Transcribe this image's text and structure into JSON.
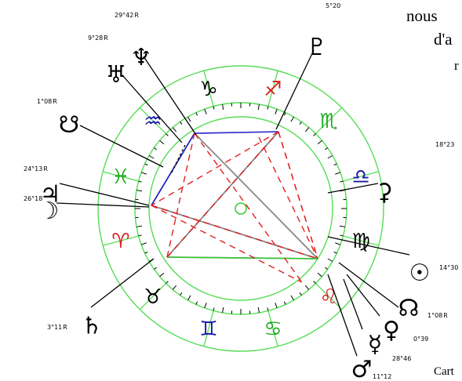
{
  "text_fragments": {
    "top_right_1": "nous",
    "top_right_2": "d'a",
    "top_right_3": "r",
    "bottom_right": "Cart"
  },
  "colors": {
    "ring": "#55dd55",
    "fire": "#dd2222",
    "earth": "#000000",
    "air": "#1a1aa8",
    "water": "#22aa22",
    "blue_line": "#2222cc",
    "red_dashed": "#e02020",
    "gray_line": "#888888",
    "green_line": "#33cc33"
  },
  "signs": [
    {
      "name": "aquarius",
      "glyph": "♒",
      "color": "#1a1aa8"
    },
    {
      "name": "capricorn",
      "glyph": "♑",
      "color": "#000000"
    },
    {
      "name": "sagittarius",
      "glyph": "♐",
      "color": "#dd2222"
    },
    {
      "name": "scorpio",
      "glyph": "♏",
      "color": "#22aa22"
    },
    {
      "name": "libra",
      "glyph": "♎",
      "color": "#1a1aa8"
    },
    {
      "name": "virgo",
      "glyph": "♍",
      "color": "#000000"
    },
    {
      "name": "leo",
      "glyph": "♌",
      "color": "#dd2222"
    },
    {
      "name": "cancer",
      "glyph": "♋",
      "color": "#22aa22"
    },
    {
      "name": "gemini",
      "glyph": "♊",
      "color": "#1a1aa8"
    },
    {
      "name": "taurus",
      "glyph": "♉",
      "color": "#000000"
    },
    {
      "name": "aries",
      "glyph": "♈",
      "color": "#dd2222"
    },
    {
      "name": "pisces",
      "glyph": "♓",
      "color": "#22aa22"
    }
  ],
  "planets": [
    {
      "name": "neptune",
      "glyph": "♆",
      "degree": "29°42",
      "retro": "R"
    },
    {
      "name": "uranus",
      "glyph": "♅",
      "degree": "9°28",
      "retro": "R"
    },
    {
      "name": "pluto",
      "glyph": "♇",
      "degree": "5°20",
      "retro": ""
    },
    {
      "name": "north-node",
      "glyph": "☋",
      "degree": "1°08",
      "retro": "R"
    },
    {
      "name": "ceres",
      "glyph": "⚳",
      "degree": "18°23",
      "retro": ""
    },
    {
      "name": "jupiter",
      "glyph": "♃",
      "degree": "24°13",
      "retro": "R"
    },
    {
      "name": "moon",
      "glyph": "☽",
      "degree": "26°18",
      "retro": ""
    },
    {
      "name": "sun",
      "glyph": "☉",
      "degree": "14°30",
      "retro": ""
    },
    {
      "name": "south-node",
      "glyph": "☊",
      "degree": "1°08",
      "retro": "R"
    },
    {
      "name": "venus",
      "glyph": "♀",
      "degree": "0°39",
      "retro": ""
    },
    {
      "name": "mercury",
      "glyph": "☿",
      "degree": "28°46",
      "retro": ""
    },
    {
      "name": "mars",
      "glyph": "♂",
      "degree": "11°12",
      "retro": ""
    },
    {
      "name": "saturn",
      "glyph": "♄",
      "degree": "3°11",
      "retro": "R"
    }
  ]
}
